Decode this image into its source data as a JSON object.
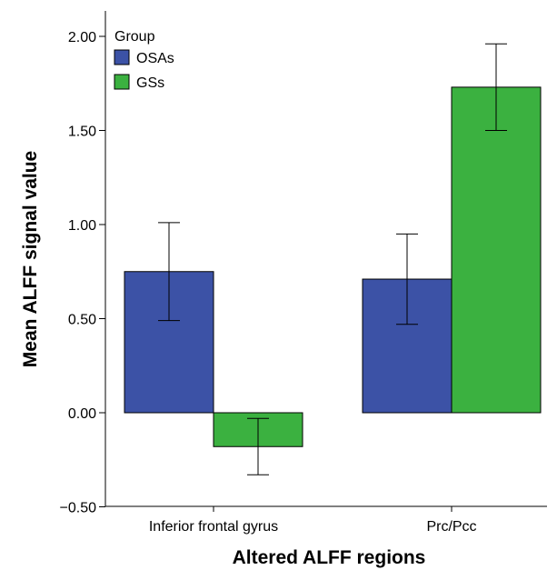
{
  "chart_data": {
    "type": "bar",
    "title": "",
    "xlabel": "Altered ALFF regions",
    "ylabel": "Mean ALFF signal value",
    "categories": [
      "Inferior frontal gyrus",
      "Prc/Pcc"
    ],
    "ylim": [
      -0.5,
      2.1
    ],
    "yticks": [
      -0.5,
      0.0,
      0.5,
      1.0,
      1.5,
      2.0
    ],
    "ytick_labels": [
      "−0.50",
      "0.00",
      "0.50",
      "1.00",
      "1.50",
      "2.00"
    ],
    "legend": {
      "title": "Group",
      "position": "top-left"
    },
    "series": [
      {
        "name": "OSAs",
        "color": "#3c52a6",
        "values": [
          0.75,
          0.71
        ],
        "error_low": [
          0.49,
          0.47
        ],
        "error_high": [
          1.01,
          0.95
        ]
      },
      {
        "name": "GSs",
        "color": "#3bb140",
        "values": [
          -0.18,
          1.73
        ],
        "error_low": [
          -0.33,
          1.5
        ],
        "error_high": [
          -0.03,
          1.96
        ]
      }
    ],
    "grid": false
  }
}
